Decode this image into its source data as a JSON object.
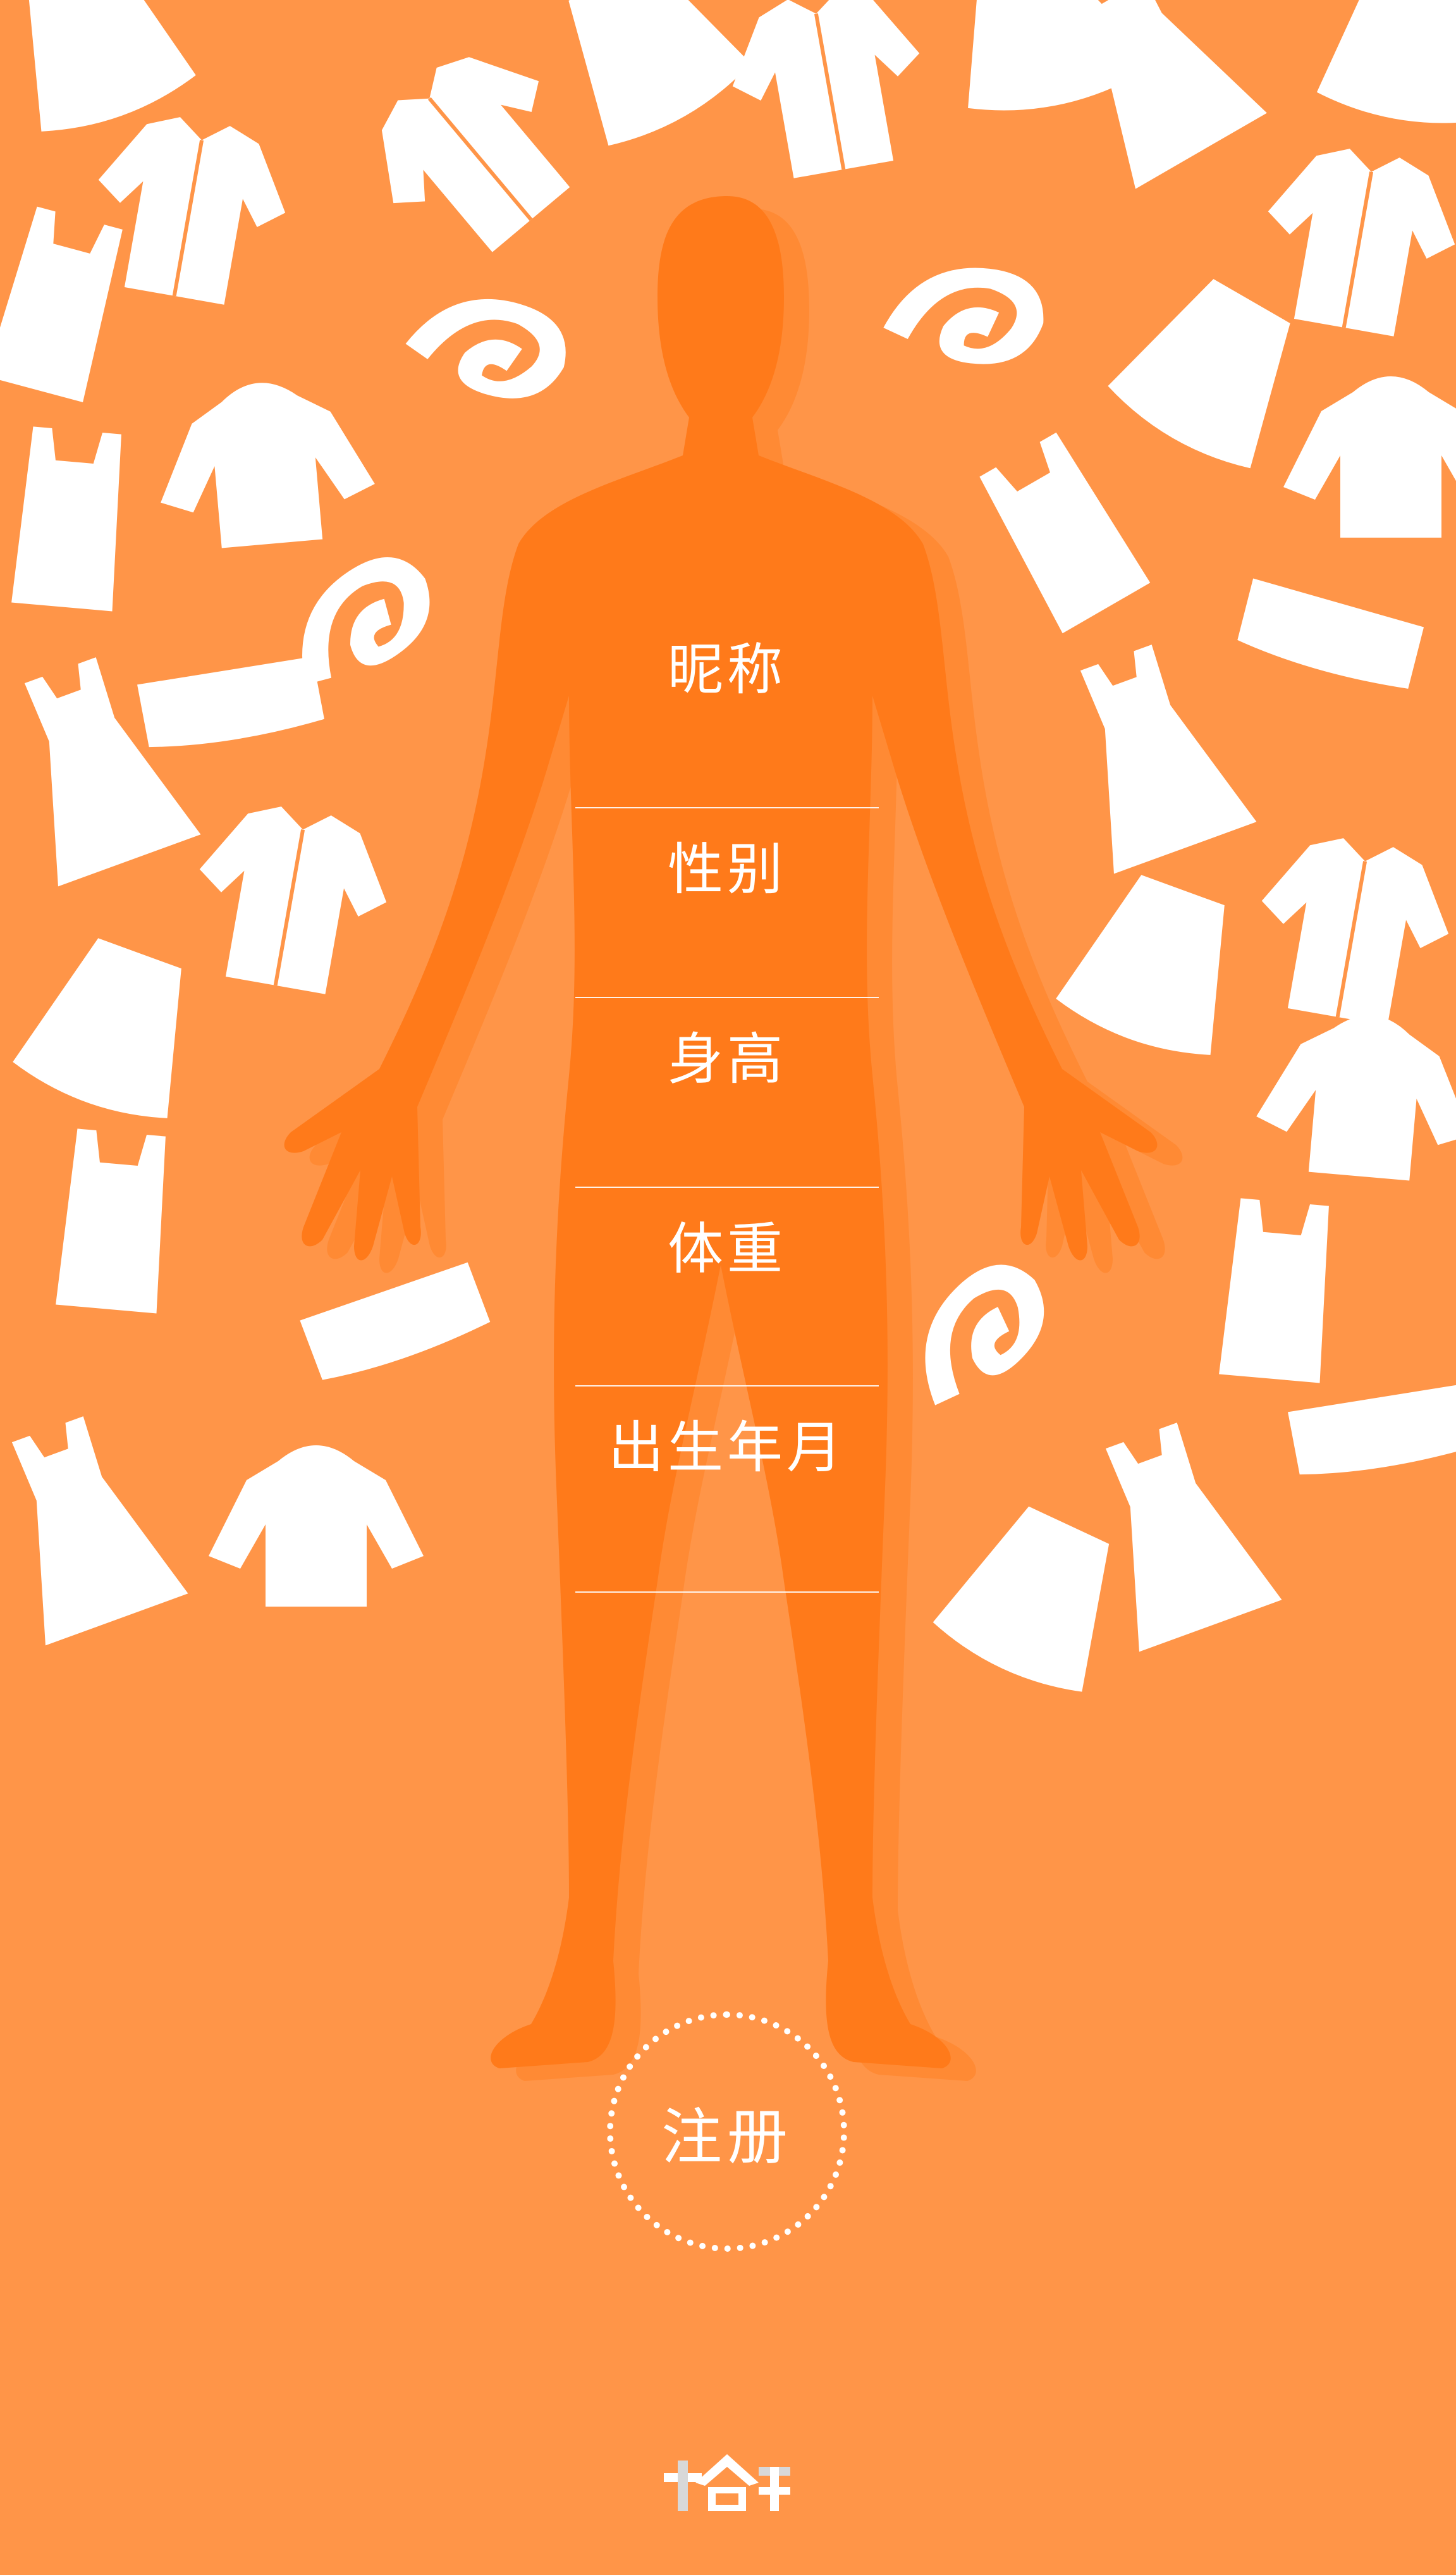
{
  "form": {
    "fields": [
      {
        "label": "昵称"
      },
      {
        "label": "性别"
      },
      {
        "label": "身高"
      },
      {
        "label": "体重"
      },
      {
        "label": "出生年月"
      }
    ]
  },
  "register": {
    "label": "注册"
  },
  "colors": {
    "background": "#ff9548",
    "silhouette": "#ff7a1a",
    "silhouette_shadow": "#ff8a34",
    "clothes": "#ffffff",
    "logo_gray": "#d8d8d8"
  },
  "icons": {
    "clothes": [
      "dress-icon",
      "shirt-icon",
      "skirt-icon",
      "sweater-icon",
      "tshirt-icon",
      "pants-icon"
    ],
    "body": "human-silhouette-icon",
    "logo": "brand-logo-icon"
  }
}
